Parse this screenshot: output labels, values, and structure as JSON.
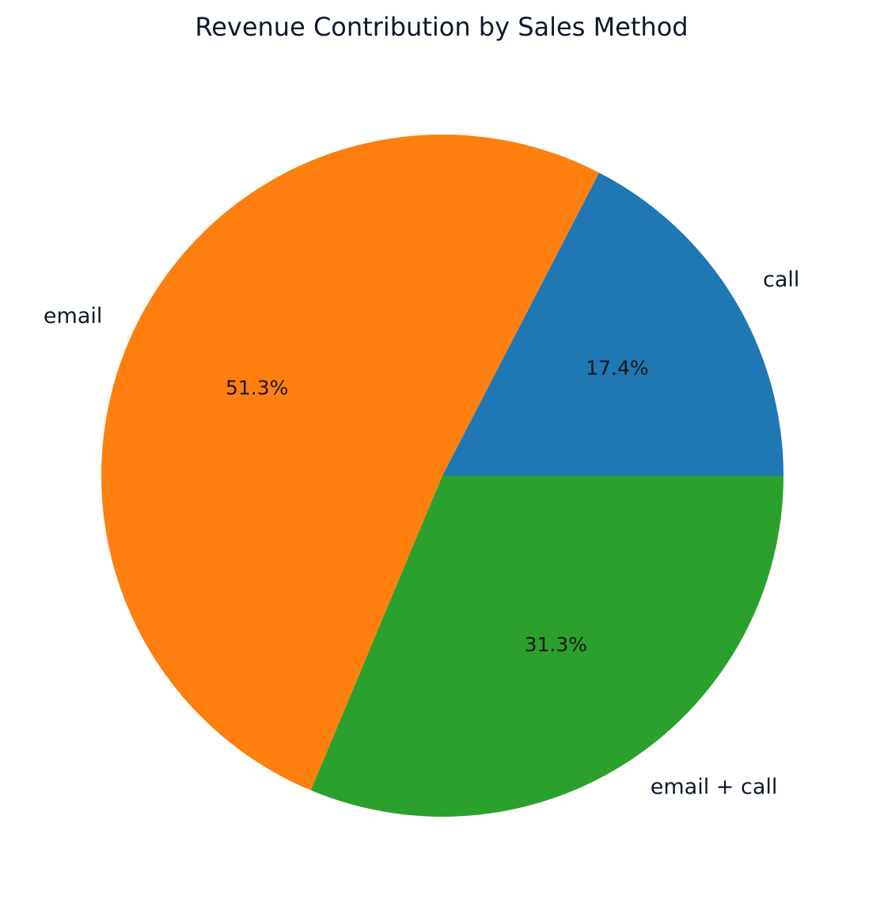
{
  "chart_data": {
    "type": "pie",
    "title": "Revenue Contribution by Sales Method",
    "slices": [
      {
        "label": "call",
        "value": 17.4,
        "pct_label": "17.4%",
        "color": "#1f77b4"
      },
      {
        "label": "email",
        "value": 51.3,
        "pct_label": "51.3%",
        "color": "#ff7f0e"
      },
      {
        "label": "email + call",
        "value": 31.3,
        "pct_label": "31.3%",
        "color": "#2ca02c"
      }
    ],
    "start_angle_deg": 0,
    "direction": "counterclockwise",
    "legend": "none"
  }
}
